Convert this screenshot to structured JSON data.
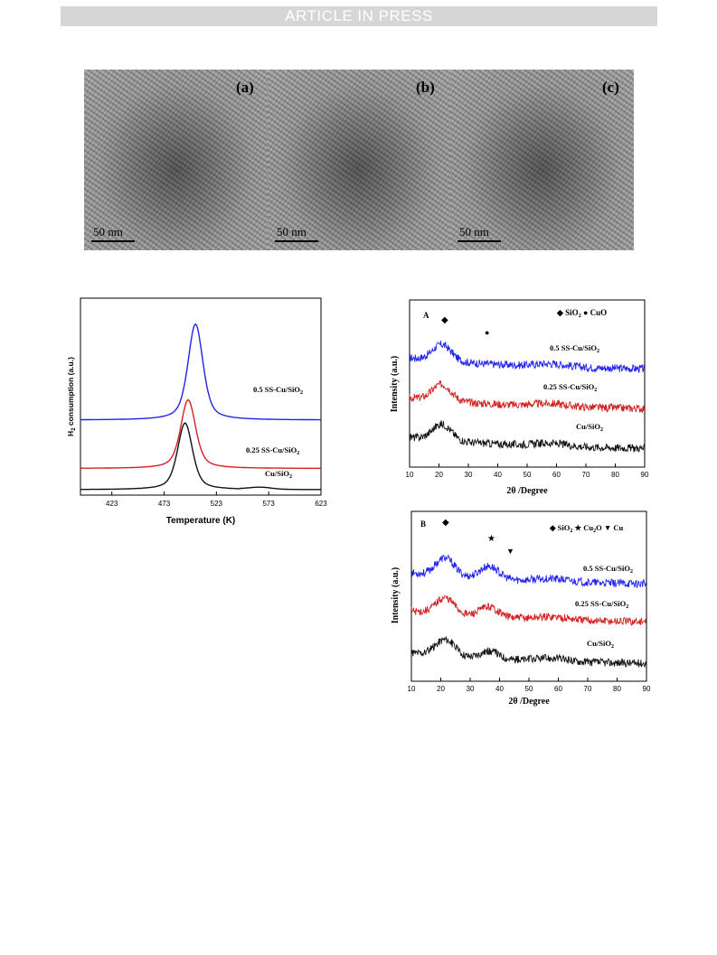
{
  "header": {
    "banner": "ARTICLE IN PRESS"
  },
  "tem": {
    "panels": [
      {
        "label": "(a)",
        "scale": "50 nm"
      },
      {
        "label": "(b)",
        "scale": "50 nm"
      },
      {
        "label": "(c)",
        "scale": "50 nm"
      }
    ]
  },
  "colors": {
    "blue": "#2222ee",
    "red": "#d42020",
    "black": "#111111"
  },
  "chart_data": [
    {
      "type": "line",
      "name": "H2-TPR",
      "xlabel": "Temperature (K)",
      "ylabel": "H2 consumption (a.u.)",
      "xlim": [
        393,
        623
      ],
      "xticks": [
        "423",
        "473",
        "523",
        "573",
        "623"
      ],
      "series": [
        {
          "name": "0.5 SS-Cu/SiO2",
          "color": "#2222ee",
          "peak_x": 503,
          "peak_height": 0.95,
          "baseline": 0.69
        },
        {
          "name": "0.25 SS-Cu/SiO2",
          "color": "#d42020",
          "peak_x": 496,
          "peak_height": 0.68,
          "baseline": 0.21
        },
        {
          "name": "Cu/SiO2",
          "color": "#111111",
          "peak_x": 493,
          "peak_height": 0.66,
          "baseline": 0.0
        }
      ]
    },
    {
      "type": "line",
      "name": "XRD A",
      "panel_label": "A",
      "xlabel": "2θ /Degree",
      "ylabel": "Intensity (a.u.)",
      "xlim": [
        10,
        90
      ],
      "xticks": [
        "10",
        "20",
        "30",
        "40",
        "50",
        "60",
        "70",
        "80",
        "90"
      ],
      "legend": [
        "SiO2",
        "CuO"
      ],
      "markers": [
        {
          "symbol": "◆",
          "x": 22
        },
        {
          "symbol": "●",
          "x": 36
        }
      ],
      "series": [
        {
          "name": "0.5 SS-Cu/SiO2",
          "color": "#2222ee",
          "peaks": [
            [
              21,
              0.45
            ]
          ]
        },
        {
          "name": "0.25 SS-Cu/SiO2",
          "color": "#d42020",
          "peaks": [
            [
              21,
              0.45
            ]
          ]
        },
        {
          "name": "Cu/SiO2",
          "color": "#111111",
          "peaks": [
            [
              21,
              0.45
            ]
          ]
        }
      ]
    },
    {
      "type": "line",
      "name": "XRD B",
      "panel_label": "B",
      "xlabel": "2θ /Degree",
      "ylabel": "Intensity (a.u.)",
      "xlim": [
        10,
        90
      ],
      "xticks": [
        "10",
        "20",
        "30",
        "40",
        "50",
        "60",
        "70",
        "80",
        "90"
      ],
      "legend": [
        "SiO2",
        "Cu2O",
        "Cu"
      ],
      "markers": [
        {
          "symbol": "◆",
          "x": 22
        },
        {
          "symbol": "★",
          "x": 37
        },
        {
          "symbol": "▼",
          "x": 43
        }
      ],
      "series": [
        {
          "name": "0.5 SS-Cu/SiO2",
          "color": "#2222ee",
          "peaks": [
            [
              21.5,
              0.5
            ],
            [
              36.5,
              0.35
            ]
          ]
        },
        {
          "name": "0.25 SS-Cu/SiO2",
          "color": "#d42020",
          "peaks": [
            [
              21.5,
              0.45
            ],
            [
              36.5,
              0.28
            ]
          ]
        },
        {
          "name": "Cu/SiO2",
          "color": "#111111",
          "peaks": [
            [
              21.5,
              0.45
            ],
            [
              36.5,
              0.2
            ]
          ]
        }
      ]
    }
  ]
}
